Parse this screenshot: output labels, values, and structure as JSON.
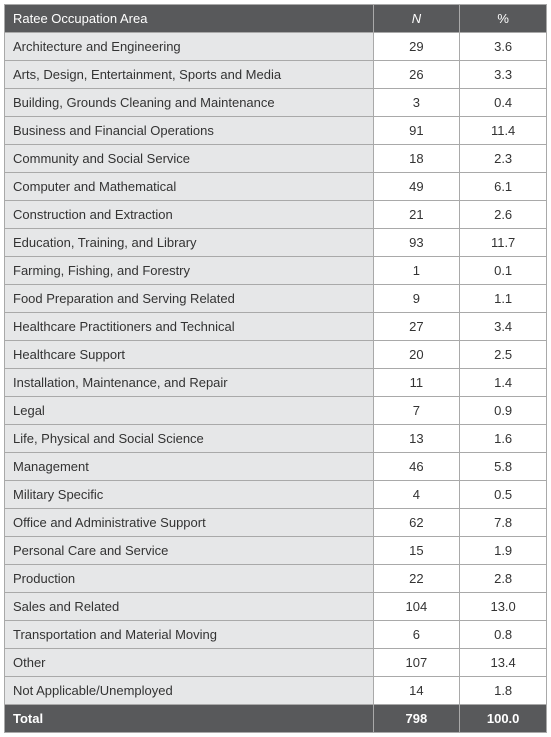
{
  "table": {
    "columns": [
      "Ratee Occupation Area",
      "N",
      "%"
    ],
    "rows": [
      [
        "Architecture and Engineering",
        "29",
        "3.6"
      ],
      [
        "Arts, Design, Entertainment, Sports and Media",
        "26",
        "3.3"
      ],
      [
        "Building, Grounds Cleaning and Maintenance",
        "3",
        "0.4"
      ],
      [
        "Business and Financial Operations",
        "91",
        "11.4"
      ],
      [
        "Community and Social Service",
        "18",
        "2.3"
      ],
      [
        "Computer and Mathematical",
        "49",
        "6.1"
      ],
      [
        "Construction and Extraction",
        "21",
        "2.6"
      ],
      [
        "Education, Training, and Library",
        "93",
        "11.7"
      ],
      [
        "Farming, Fishing, and Forestry",
        "1",
        "0.1"
      ],
      [
        "Food Preparation and Serving Related",
        "9",
        "1.1"
      ],
      [
        "Healthcare Practitioners and Technical",
        "27",
        "3.4"
      ],
      [
        "Healthcare Support",
        "20",
        "2.5"
      ],
      [
        "Installation, Maintenance, and Repair",
        "11",
        "1.4"
      ],
      [
        "Legal",
        "7",
        "0.9"
      ],
      [
        "Life, Physical and Social Science",
        "13",
        "1.6"
      ],
      [
        "Management",
        "46",
        "5.8"
      ],
      [
        "Military Specific",
        "4",
        "0.5"
      ],
      [
        "Office and Administrative Support",
        "62",
        "7.8"
      ],
      [
        "Personal Care and Service",
        "15",
        "1.9"
      ],
      [
        "Production",
        "22",
        "2.8"
      ],
      [
        "Sales and Related",
        "104",
        "13.0"
      ],
      [
        "Transportation and Material Moving",
        "6",
        "0.8"
      ],
      [
        "Other",
        "107",
        "13.4"
      ],
      [
        "Not Applicable/Unemployed",
        "14",
        "1.8"
      ]
    ],
    "total": [
      "Total",
      "798",
      "100.0"
    ],
    "header_bg": "#58595b",
    "header_fg": "#ffffff",
    "row_label_bg": "#e6e7e8",
    "cell_bg": "#ffffff",
    "text_color": "#333333",
    "border_color": "#a9a9a9",
    "font_size_pt": 10
  }
}
